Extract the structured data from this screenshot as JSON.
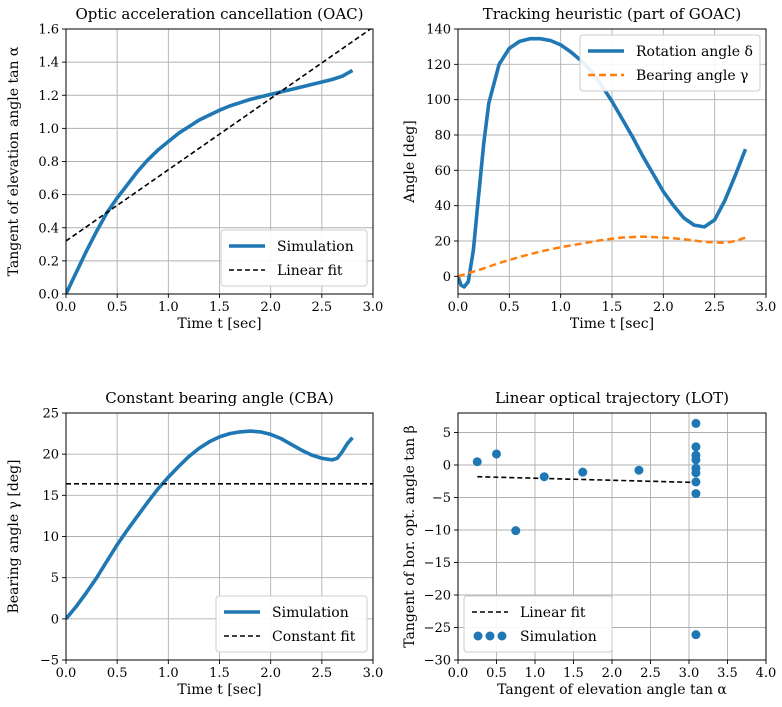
{
  "chart_data": [
    {
      "type": "line",
      "title": "Optic acceleration cancellation (OAC)",
      "xlabel": "Time t [sec]",
      "ylabel": "Tangent of elevation angle tan α",
      "xlim": [
        0,
        3.0
      ],
      "ylim": [
        0,
        1.6
      ],
      "xticks": [
        "0.0",
        "0.5",
        "1.0",
        "1.5",
        "2.0",
        "2.5",
        "3.0"
      ],
      "yticks": [
        "0.0",
        "0.2",
        "0.4",
        "0.6",
        "0.8",
        "1.0",
        "1.2",
        "1.4",
        "1.6"
      ],
      "grid": true,
      "legend_position": "lower-right",
      "series": [
        {
          "name": "Simulation",
          "style": "solid",
          "color": "#1f77b4",
          "x": [
            0,
            0.1,
            0.2,
            0.3,
            0.4,
            0.5,
            0.6,
            0.7,
            0.8,
            0.9,
            1.0,
            1.1,
            1.2,
            1.3,
            1.4,
            1.5,
            1.6,
            1.7,
            1.8,
            1.9,
            2.0,
            2.1,
            2.2,
            2.3,
            2.4,
            2.5,
            2.6,
            2.7,
            2.8
          ],
          "y": [
            0.0,
            0.13,
            0.26,
            0.38,
            0.49,
            0.58,
            0.66,
            0.74,
            0.81,
            0.87,
            0.92,
            0.97,
            1.01,
            1.05,
            1.08,
            1.11,
            1.135,
            1.155,
            1.175,
            1.19,
            1.205,
            1.22,
            1.235,
            1.25,
            1.265,
            1.28,
            1.295,
            1.315,
            1.35
          ]
        },
        {
          "name": "Linear fit",
          "style": "dashed",
          "color": "#000000",
          "x": [
            0,
            3.0
          ],
          "y": [
            0.32,
            1.61
          ]
        }
      ]
    },
    {
      "type": "line",
      "title": "Tracking heuristic (part of GOAC)",
      "xlabel": "Time t [sec]",
      "ylabel": "Angle [deg]",
      "xlim": [
        0,
        3.0
      ],
      "ylim": [
        -10,
        140
      ],
      "xticks": [
        "0.0",
        "0.5",
        "1.0",
        "1.5",
        "2.0",
        "2.5",
        "3.0"
      ],
      "yticks": [
        "0",
        "20",
        "40",
        "60",
        "80",
        "100",
        "120",
        "140"
      ],
      "grid": true,
      "legend_position": "upper-right",
      "series": [
        {
          "name": "Rotation angle δ",
          "style": "solid",
          "color": "#1f77b4",
          "x": [
            0,
            0.03,
            0.06,
            0.1,
            0.15,
            0.2,
            0.25,
            0.3,
            0.4,
            0.5,
            0.6,
            0.7,
            0.8,
            0.9,
            1.0,
            1.1,
            1.2,
            1.3,
            1.4,
            1.5,
            1.6,
            1.7,
            1.8,
            1.9,
            2.0,
            2.1,
            2.2,
            2.3,
            2.4,
            2.5,
            2.6,
            2.7,
            2.8
          ],
          "y": [
            0,
            -5,
            -6,
            -3,
            15,
            45,
            75,
            98,
            120,
            129,
            133,
            134.5,
            134.5,
            133.5,
            131,
            127,
            122,
            116,
            108,
            99,
            89,
            79,
            68,
            58,
            48,
            40,
            33,
            29,
            28,
            32,
            43,
            57,
            72
          ]
        },
        {
          "name": "Bearing angle γ",
          "style": "dashed",
          "color": "#ff7f0e",
          "x": [
            0,
            0.2,
            0.4,
            0.6,
            0.8,
            1.0,
            1.2,
            1.4,
            1.6,
            1.8,
            2.0,
            2.2,
            2.4,
            2.6,
            2.7,
            2.8
          ],
          "y": [
            0,
            3.5,
            7.5,
            11,
            14,
            16.5,
            18.5,
            20.5,
            22,
            22.5,
            22,
            21,
            19.5,
            19,
            20,
            22
          ]
        }
      ]
    },
    {
      "type": "line",
      "title": "Constant bearing angle (CBA)",
      "xlabel": "Time t [sec]",
      "ylabel": "Bearing angle γ [deg]",
      "xlim": [
        0,
        3.0
      ],
      "ylim": [
        -5,
        25
      ],
      "xticks": [
        "0.0",
        "0.5",
        "1.0",
        "1.5",
        "2.0",
        "2.5",
        "3.0"
      ],
      "yticks": [
        "−5",
        "0",
        "5",
        "10",
        "15",
        "20",
        "25"
      ],
      "grid": true,
      "legend_position": "lower-right",
      "series": [
        {
          "name": "Simulation",
          "style": "solid",
          "color": "#1f77b4",
          "x": [
            0,
            0.1,
            0.2,
            0.3,
            0.4,
            0.5,
            0.6,
            0.7,
            0.8,
            0.9,
            1.0,
            1.1,
            1.2,
            1.3,
            1.4,
            1.5,
            1.6,
            1.7,
            1.8,
            1.9,
            2.0,
            2.1,
            2.2,
            2.3,
            2.4,
            2.5,
            2.6,
            2.65,
            2.7,
            2.75,
            2.8
          ],
          "y": [
            0,
            1.5,
            3.2,
            5,
            7,
            9,
            10.8,
            12.5,
            14.2,
            15.8,
            17.2,
            18.5,
            19.7,
            20.7,
            21.5,
            22.1,
            22.5,
            22.7,
            22.8,
            22.7,
            22.4,
            21.9,
            21.2,
            20.5,
            19.9,
            19.5,
            19.3,
            19.5,
            20.3,
            21.3,
            22.0
          ]
        },
        {
          "name": "Constant fit",
          "style": "dashed",
          "color": "#000000",
          "x": [
            0,
            3.0
          ],
          "y": [
            16.4,
            16.4
          ]
        }
      ]
    },
    {
      "type": "scatter",
      "title": "Linear optical trajectory (LOT)",
      "xlabel": "Tangent of elevation angle tan α",
      "ylabel": "Tangent of hor. opt. angle tan β",
      "xlim": [
        0,
        4.0
      ],
      "ylim": [
        -30,
        8
      ],
      "xticks": [
        "0.0",
        "0.5",
        "1.0",
        "1.5",
        "2.0",
        "2.5",
        "3.0",
        "3.5",
        "4.0"
      ],
      "yticks": [
        "−30",
        "−25",
        "−20",
        "−15",
        "−10",
        "−5",
        "0",
        "5"
      ],
      "grid": true,
      "legend_position": "lower-left",
      "series": [
        {
          "name": "Linear fit",
          "style": "dashed",
          "color": "#000000",
          "x": [
            0.25,
            3.1
          ],
          "y": [
            -1.8,
            -2.7
          ]
        },
        {
          "name": "Simulation",
          "style": "markers",
          "color": "#1f77b4",
          "x": [
            0.25,
            0.5,
            0.75,
            1.12,
            1.62,
            2.35,
            3.09,
            3.09,
            3.09,
            3.09,
            3.09,
            3.09,
            3.09,
            3.09,
            3.09
          ],
          "y": [
            0.5,
            1.7,
            -10.1,
            -1.8,
            -1.1,
            -0.8,
            6.4,
            2.8,
            1.5,
            0.8,
            -0.5,
            -1.2,
            -2.6,
            -4.4,
            -26.1
          ]
        }
      ]
    }
  ]
}
